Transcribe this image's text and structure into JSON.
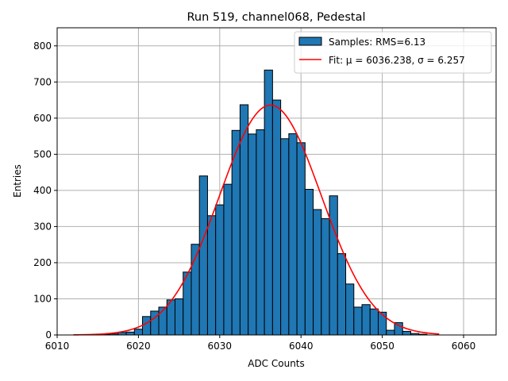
{
  "chart_data": {
    "type": "bar",
    "title": "Run 519, channel068, Pedestal",
    "xlabel": "ADC Counts",
    "ylabel": "Entries",
    "xlim": [
      6010,
      6064
    ],
    "ylim": [
      0,
      850
    ],
    "xticks": [
      6010,
      6020,
      6030,
      6040,
      6050,
      6060
    ],
    "yticks": [
      0,
      100,
      200,
      300,
      400,
      500,
      600,
      700,
      800
    ],
    "grid": true,
    "legend_position": "top-right",
    "bin_width": 1,
    "bins": [
      {
        "x": 6016,
        "y": 2
      },
      {
        "x": 6017,
        "y": 3
      },
      {
        "x": 6018,
        "y": 7
      },
      {
        "x": 6019,
        "y": 8
      },
      {
        "x": 6020,
        "y": 16
      },
      {
        "x": 6021,
        "y": 51
      },
      {
        "x": 6022,
        "y": 66
      },
      {
        "x": 6023,
        "y": 77
      },
      {
        "x": 6024,
        "y": 97
      },
      {
        "x": 6025,
        "y": 100
      },
      {
        "x": 6026,
        "y": 174
      },
      {
        "x": 6027,
        "y": 251
      },
      {
        "x": 6028,
        "y": 440
      },
      {
        "x": 6029,
        "y": 330
      },
      {
        "x": 6030,
        "y": 360
      },
      {
        "x": 6031,
        "y": 417
      },
      {
        "x": 6032,
        "y": 566
      },
      {
        "x": 6033,
        "y": 637
      },
      {
        "x": 6034,
        "y": 556
      },
      {
        "x": 6035,
        "y": 568
      },
      {
        "x": 6036,
        "y": 733
      },
      {
        "x": 6037,
        "y": 650
      },
      {
        "x": 6038,
        "y": 543
      },
      {
        "x": 6039,
        "y": 557
      },
      {
        "x": 6040,
        "y": 532
      },
      {
        "x": 6041,
        "y": 403
      },
      {
        "x": 6042,
        "y": 347
      },
      {
        "x": 6043,
        "y": 322
      },
      {
        "x": 6044,
        "y": 385
      },
      {
        "x": 6045,
        "y": 225
      },
      {
        "x": 6046,
        "y": 141
      },
      {
        "x": 6047,
        "y": 77
      },
      {
        "x": 6048,
        "y": 84
      },
      {
        "x": 6049,
        "y": 72
      },
      {
        "x": 6050,
        "y": 63
      },
      {
        "x": 6051,
        "y": 13
      },
      {
        "x": 6052,
        "y": 34
      },
      {
        "x": 6053,
        "y": 10
      },
      {
        "x": 6054,
        "y": 4
      },
      {
        "x": 6055,
        "y": 2
      }
    ],
    "fit": {
      "mu": 6036.238,
      "sigma": 6.257,
      "amplitude": 636,
      "x_range": [
        6012,
        6057
      ]
    },
    "series": [
      {
        "name": "Samples: RMS=6.13",
        "kind": "histogram",
        "color": "#1f77b4"
      },
      {
        "name": "Fit: μ = 6036.238, σ = 6.257",
        "kind": "gaussian-fit",
        "color": "#ff0000"
      }
    ]
  }
}
